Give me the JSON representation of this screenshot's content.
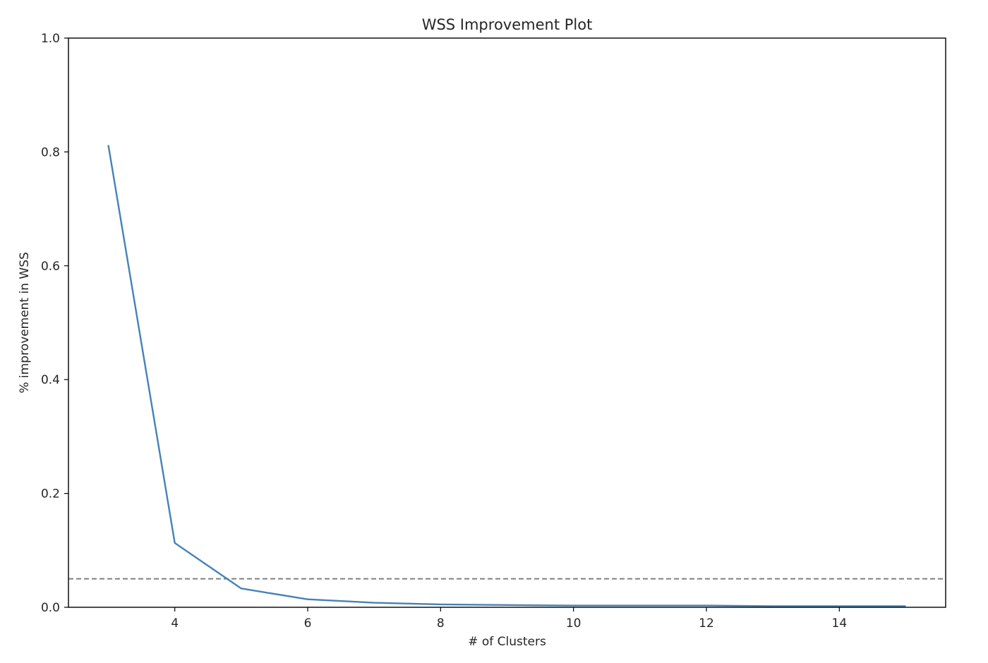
{
  "chart_data": {
    "type": "line",
    "title": "WSS Improvement Plot",
    "xlabel": "# of Clusters",
    "ylabel": "% improvement in WSS",
    "xlim": [
      2.4,
      15.6
    ],
    "ylim": [
      0.0,
      1.0
    ],
    "xticks": [
      4,
      6,
      8,
      10,
      12,
      14
    ],
    "xtick_labels": [
      "4",
      "6",
      "8",
      "10",
      "12",
      "14"
    ],
    "yticks": [
      0.0,
      0.2,
      0.4,
      0.6,
      0.8,
      1.0
    ],
    "ytick_labels": [
      "0.0",
      "0.2",
      "0.4",
      "0.6",
      "0.8",
      "1.0"
    ],
    "grid": false,
    "series": [
      {
        "color": "#4682b4",
        "x": [
          3,
          4,
          5,
          6,
          7,
          8,
          9,
          10,
          11,
          12,
          13,
          14,
          15
        ],
        "y": [
          0.812,
          0.113,
          0.033,
          0.014,
          0.008,
          0.005,
          0.004,
          0.003,
          0.003,
          0.003,
          0.002,
          0.002,
          0.002
        ]
      }
    ],
    "reference_line": {
      "y": 0.05,
      "style": "dashed",
      "color": "#808080"
    }
  }
}
